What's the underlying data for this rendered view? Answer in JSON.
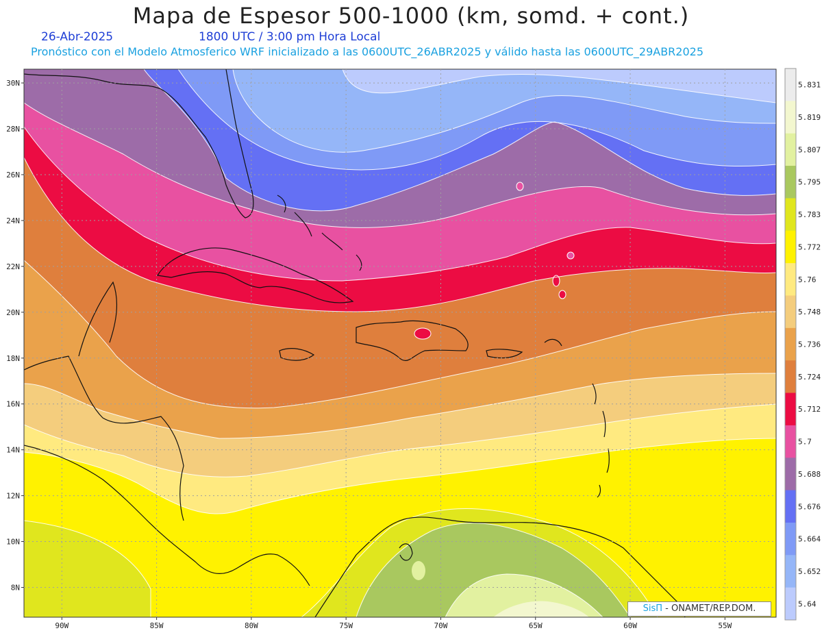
{
  "header": {
    "title": "Mapa de Espesor 500-1000 (km, somd. + cont.)",
    "date": "26-Abr-2025",
    "time": "1800 UTC / 3:00 pm Hora Local",
    "forecast": "Pronóstico con el Modelo Atmosferico WRF inicializado a las 0600UTC_26ABR2025 y válido hasta las  0600UTC_29ABR2025"
  },
  "axes": {
    "lat_labels": [
      "30N",
      "28N",
      "26N",
      "24N",
      "22N",
      "20N",
      "18N",
      "16N",
      "14N",
      "12N",
      "10N",
      "8N"
    ],
    "lat_values": [
      30,
      28,
      26,
      24,
      22,
      20,
      18,
      16,
      14,
      12,
      10,
      8
    ],
    "lon_labels": [
      "90W",
      "85W",
      "80W",
      "75W",
      "70W",
      "65W",
      "60W",
      "55W"
    ],
    "lon_values": [
      -90,
      -85,
      -80,
      -75,
      -70,
      -65,
      -60,
      -55
    ]
  },
  "colorbar": {
    "labels": [
      "5.831",
      "5.819",
      "5.807",
      "5.795",
      "5.783",
      "5.772",
      "5.76",
      "5.748",
      "5.736",
      "5.724",
      "5.712",
      "5.7",
      "5.688",
      "5.676",
      "5.664",
      "5.652",
      "5.64"
    ],
    "colors": [
      "#ececec",
      "#f3f7cf",
      "#e2f1a0",
      "#a9c85f",
      "#e0e61e",
      "#fff200",
      "#ffea80",
      "#f4cd7d",
      "#eaa24b",
      "#df7f3d",
      "#ec0c43",
      "#e851a1",
      "#9d6ca8",
      "#6470f4",
      "#7f9af6",
      "#95b6f8",
      "#bccbfd"
    ],
    "swatch_note": ""
  },
  "credit": {
    "brand": "SisΠ",
    "text": " - ONAMET/REP.DOM."
  },
  "colors": {
    "land_outline": "#111111",
    "grid": "#a0a0a0",
    "contour": "#ffffff"
  }
}
